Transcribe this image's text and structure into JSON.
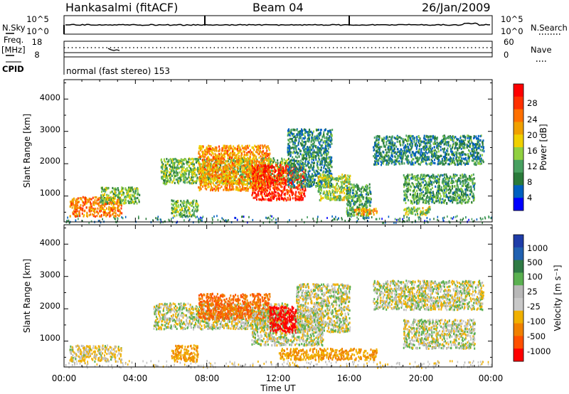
{
  "header": {
    "station": "Hankasalmi (fitACF)",
    "beam": "Beam 04",
    "date": "26/Jan/2009"
  },
  "summary": {
    "nsky_label": "N.Sky",
    "nsky_ticks": [
      "10^5",
      "10^0"
    ],
    "nsearch_label": "N.Search",
    "nsearch_ticks": [
      "10^5",
      "10^0"
    ],
    "freq_label_1": "Freq.",
    "freq_label_2": "[MHz]",
    "freq_ticks": [
      "18",
      "8"
    ],
    "nave_label": "Nave",
    "nave_ticks": [
      "60",
      "0"
    ],
    "cpid_label": "CPID",
    "cpid_text": "normal (fast stereo) 153"
  },
  "colors": {
    "power": [
      "#0000ff",
      "#0060c0",
      "#2a7a3a",
      "#48a060",
      "#90d040",
      "#f0d000",
      "#f0a000",
      "#ff7000",
      "#ff3000",
      "#ff0000"
    ],
    "velocity": [
      "#1e3ca8",
      "#2060b0",
      "#2f7a45",
      "#5ab050",
      "#b8b8b8",
      "#c8c8c8",
      "#f0b000",
      "#f08000",
      "#ff5000",
      "#ff0000"
    ]
  },
  "chart_data": [
    {
      "type": "heatmap",
      "quantity": "power",
      "ylabel": "Slant Range [km]",
      "xlabel": "Time UT",
      "ylim": [
        200,
        4600
      ],
      "xlim": [
        0,
        24
      ],
      "yticks": [
        "1000",
        "2000",
        "3000",
        "4000"
      ],
      "xticks": [
        "00:00",
        "04:00",
        "08:00",
        "12:00",
        "16:00",
        "20:00",
        "00:00"
      ],
      "colorbar": {
        "label": "Power [dB]",
        "range": [
          0,
          30
        ],
        "tick_labels": [
          "28",
          "24",
          "20",
          "16",
          "12",
          "8",
          "4"
        ]
      },
      "regions": [
        {
          "t": [
            0.3,
            3.2
          ],
          "r": [
            400,
            1000
          ],
          "level": 22
        },
        {
          "t": [
            2.0,
            4.2
          ],
          "r": [
            800,
            1300
          ],
          "level": 12
        },
        {
          "t": [
            5.4,
            12.5
          ],
          "r": [
            1400,
            2200
          ],
          "level": 12
        },
        {
          "t": [
            7.5,
            11.5
          ],
          "r": [
            1200,
            2600
          ],
          "level": 20
        },
        {
          "t": [
            10.5,
            13.5
          ],
          "r": [
            900,
            2000
          ],
          "level": 26
        },
        {
          "t": [
            12.5,
            15.0
          ],
          "r": [
            1300,
            3100
          ],
          "level": 8
        },
        {
          "t": [
            14.2,
            16.0
          ],
          "r": [
            900,
            1700
          ],
          "level": 14
        },
        {
          "t": [
            15.8,
            17.2
          ],
          "r": [
            400,
            1400
          ],
          "level": 10
        },
        {
          "t": [
            16.2,
            17.5
          ],
          "r": [
            450,
            650
          ],
          "level": 20
        },
        {
          "t": [
            19.0,
            20.5
          ],
          "r": [
            450,
            700
          ],
          "level": 14
        },
        {
          "t": [
            17.3,
            23.5
          ],
          "r": [
            2000,
            2900
          ],
          "level": 8
        },
        {
          "t": [
            19.0,
            23.0
          ],
          "r": [
            800,
            1700
          ],
          "level": 10
        },
        {
          "t": [
            6.0,
            7.5
          ],
          "r": [
            400,
            900
          ],
          "level": 12
        }
      ]
    },
    {
      "type": "heatmap",
      "quantity": "velocity",
      "ylabel": "Slant Range [km]",
      "xlabel": "Time UT",
      "ylim": [
        200,
        4600
      ],
      "xlim": [
        0,
        24
      ],
      "yticks": [
        "1000",
        "2000",
        "3000",
        "4000"
      ],
      "xticks": [
        "00:00",
        "04:00",
        "08:00",
        "12:00",
        "16:00",
        "20:00",
        "00:00"
      ],
      "colorbar": {
        "label": "Velocity [m s⁻¹]",
        "tick_labels": [
          "1000",
          "500",
          "100",
          "25",
          "-25",
          "-100",
          "-500",
          "-1000"
        ]
      },
      "regions": [
        {
          "t": [
            0.3,
            3.2
          ],
          "r": [
            400,
            900
          ],
          "value": -25
        },
        {
          "t": [
            5.0,
            12.5
          ],
          "r": [
            1400,
            2200
          ],
          "value": 0
        },
        {
          "t": [
            7.5,
            11.5
          ],
          "r": [
            1700,
            2500
          ],
          "value": -500
        },
        {
          "t": [
            10.5,
            14.5
          ],
          "r": [
            900,
            2000
          ],
          "value": 0
        },
        {
          "t": [
            11.5,
            13.0
          ],
          "r": [
            1300,
            2100
          ],
          "value": -900
        },
        {
          "t": [
            13.0,
            16.0
          ],
          "r": [
            1300,
            2800
          ],
          "value": 0
        },
        {
          "t": [
            12.0,
            17.5
          ],
          "r": [
            450,
            800
          ],
          "value": -100
        },
        {
          "t": [
            17.3,
            23.5
          ],
          "r": [
            2000,
            2900
          ],
          "value": 0
        },
        {
          "t": [
            19.0,
            23.0
          ],
          "r": [
            800,
            1700
          ],
          "value": 0
        },
        {
          "t": [
            6.0,
            7.5
          ],
          "r": [
            400,
            900
          ],
          "value": -100
        }
      ]
    }
  ]
}
